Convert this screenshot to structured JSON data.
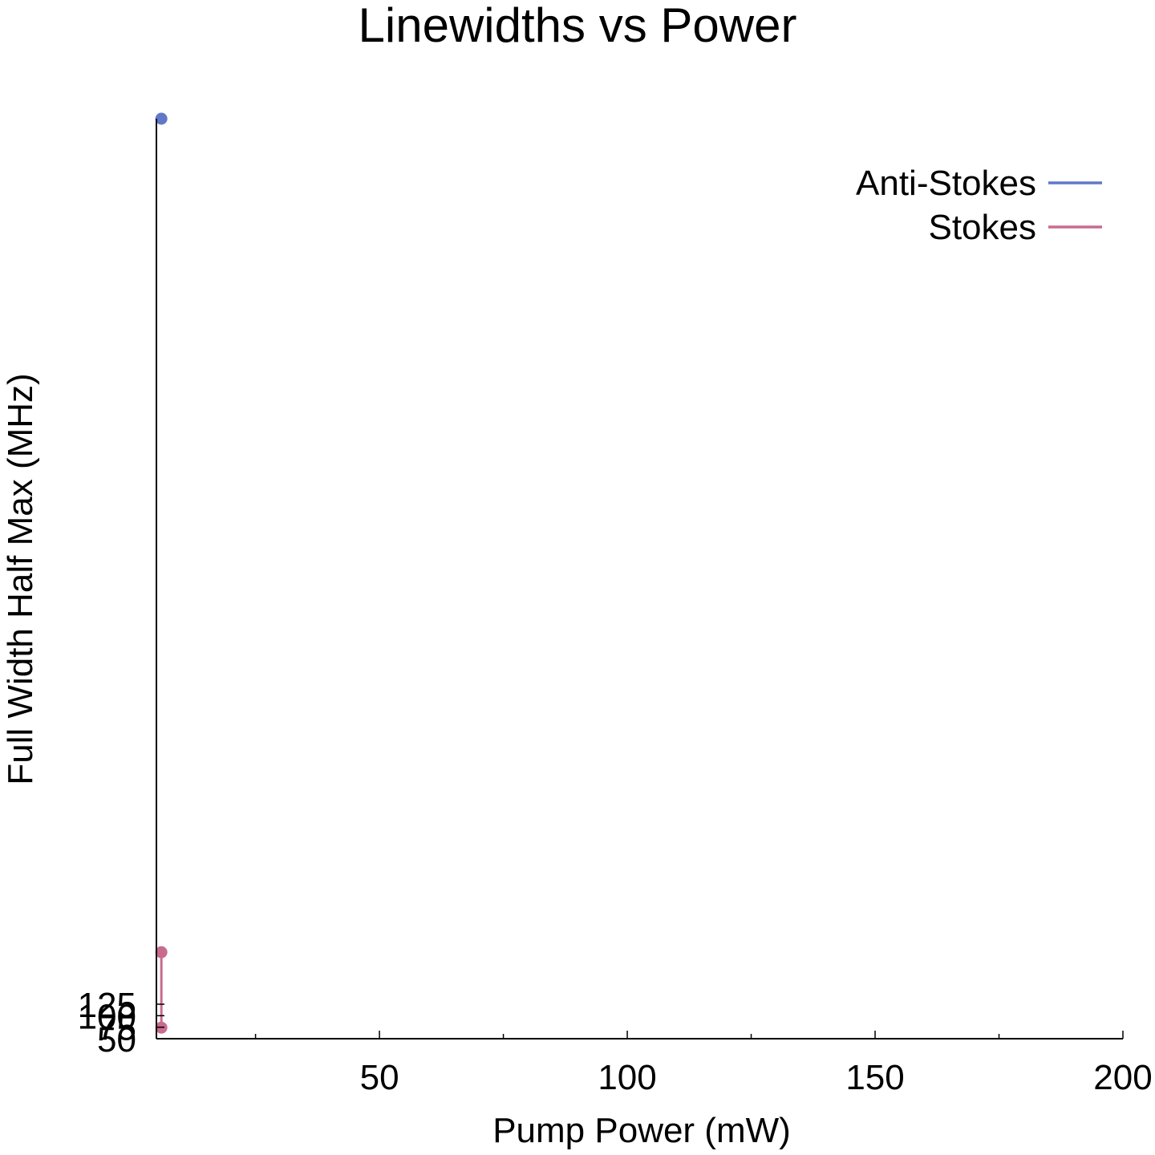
{
  "chart_data": {
    "type": "line",
    "title": "Linewidths vs Power",
    "xlabel": "Pump Power (mW)",
    "ylabel": "Full Width Half Max (MHz)",
    "xlim": [
      5,
      200
    ],
    "ylim": [
      50,
      2050
    ],
    "x_ticks": [
      50,
      100,
      150,
      200
    ],
    "x_minor_ticks": [
      25,
      75,
      125,
      175
    ],
    "y_ticks": [
      50,
      75,
      100,
      125
    ],
    "y_tick_labels": [
      "50",
      "75",
      "100",
      "125"
    ],
    "legend_position": "top-right",
    "grid": false,
    "series": [
      {
        "name": "Anti-Stokes",
        "color": "#6178c8",
        "x": [
          6
        ],
        "y": [
          2050
        ]
      },
      {
        "name": "Stokes",
        "color": "#c96b8f",
        "x": [
          6,
          6
        ],
        "y": [
          238,
          74
        ]
      }
    ]
  }
}
